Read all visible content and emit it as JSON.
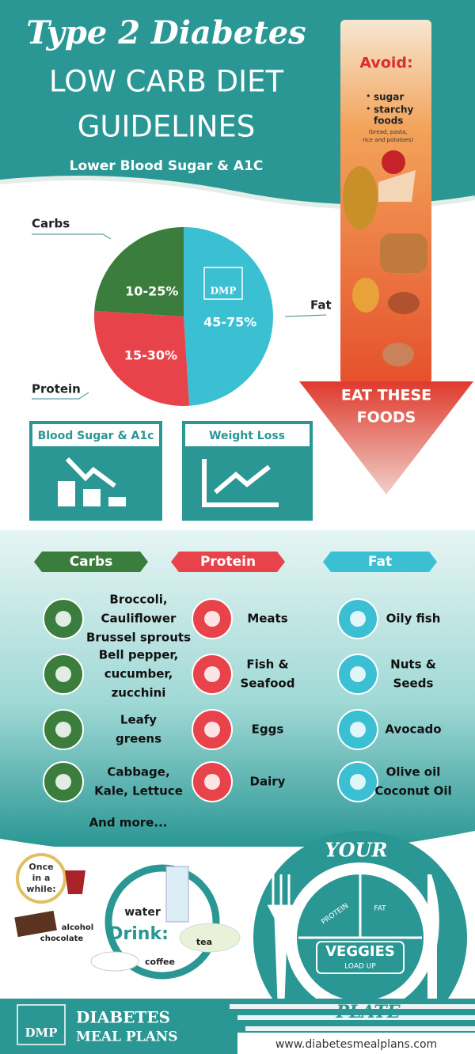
{
  "header": {
    "title_script": "Type 2 Diabetes",
    "title_line1": "LOW CARB DIET",
    "title_line2": "GUIDELINES",
    "subtitle": "Lower Blood Sugar & A1C"
  },
  "avoid": {
    "heading": "Avoid:",
    "items": [
      "sugar",
      "starchy",
      "foods"
    ],
    "note": [
      "(bread, pasta,",
      "rice and potatoes)"
    ],
    "arrow_label": [
      "EAT THESE",
      "FOODS"
    ]
  },
  "pie": {
    "logo": "DMP",
    "slices": [
      {
        "name": "Fat",
        "label": "45-75%",
        "share": 49,
        "color": "#3bbfd2"
      },
      {
        "name": "Protein",
        "label": "15-30%",
        "share": 27,
        "color": "#e8434a"
      },
      {
        "name": "Carbs",
        "label": "10-25%",
        "share": 24,
        "color": "#3b7d3c"
      }
    ]
  },
  "benefits": [
    "Blood Sugar & A1c",
    "Weight Loss"
  ],
  "food_groups": [
    {
      "name": "Carbs",
      "color": "#3b7d3c",
      "items": [
        [
          "Broccoli,",
          "Cauliflower",
          "Brussel sprouts"
        ],
        [
          "Bell pepper,",
          "cucumber,",
          "zucchini"
        ],
        [
          "Leafy",
          "greens"
        ],
        [
          "Cabbage,",
          "Kale, Lettuce"
        ]
      ],
      "more": "And more..."
    },
    {
      "name": "Protein",
      "color": "#e8434a",
      "items": [
        [
          "Meats"
        ],
        [
          "Fish &",
          "Seafood"
        ],
        [
          "Eggs"
        ],
        [
          "Dairy"
        ]
      ]
    },
    {
      "name": "Fat",
      "color": "#3bbfd2",
      "items": [
        [
          "Oily fish"
        ],
        [
          "Nuts &",
          "Seeds"
        ],
        [
          "Avocado"
        ],
        [
          "Olive oil",
          "Coconut Oil"
        ]
      ]
    }
  ],
  "treats": {
    "heading": [
      "Once",
      "in a",
      "while:"
    ],
    "items": [
      "alcohol",
      "chocolate"
    ]
  },
  "drink": {
    "label": "Drink:",
    "items": [
      "water",
      "tea",
      "coffee"
    ]
  },
  "plate": {
    "top": "YOUR",
    "bottom": "PLATE",
    "sections": [
      "PROTEIN",
      "FAT"
    ],
    "center": "VEGGIES",
    "center_note": "LOAD UP"
  },
  "footer": {
    "logo": "DMP",
    "brand": [
      "DIABETES",
      "MEAL PLANS"
    ],
    "url": "www.diabetesmealplans.com"
  }
}
